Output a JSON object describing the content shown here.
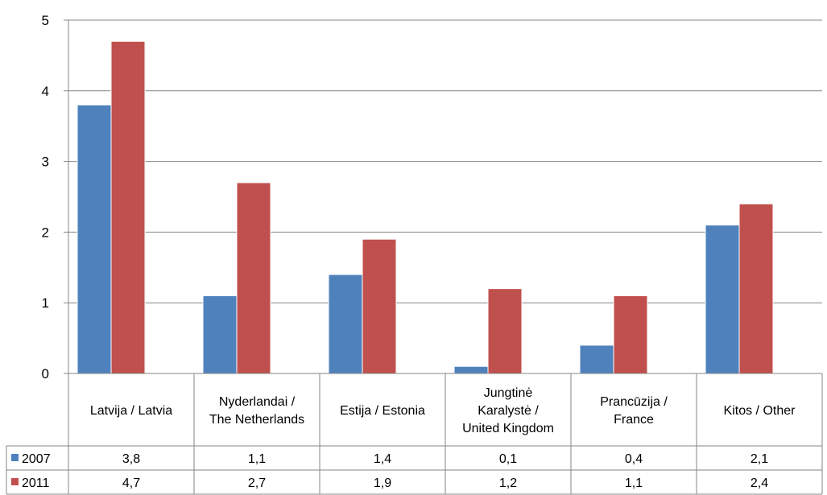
{
  "chart_data": {
    "type": "bar",
    "categories": [
      [
        "Latvija / Latvia"
      ],
      [
        "Nyderlandai /",
        "The Netherlands"
      ],
      [
        "Estija / Estonia"
      ],
      [
        "Jungtinė",
        "Karalystė /",
        "United Kingdom"
      ],
      [
        "Prancūzija /",
        "France"
      ],
      [
        "Kitos / Other"
      ]
    ],
    "series": [
      {
        "name": "2007",
        "color": "#4f81bd",
        "values": [
          3.8,
          1.1,
          1.4,
          0.1,
          0.4,
          2.1
        ],
        "labels": [
          "3,8",
          "1,1",
          "1,4",
          "0,1",
          "0,4",
          "2,1"
        ]
      },
      {
        "name": "2011",
        "color": "#c0504d",
        "values": [
          4.7,
          2.7,
          1.9,
          1.2,
          1.1,
          2.4
        ],
        "labels": [
          "4,7",
          "2,7",
          "1,9",
          "1,2",
          "1,1",
          "2,4"
        ]
      }
    ],
    "ylim": [
      0,
      5
    ],
    "yticks": [
      "0",
      "1",
      "2",
      "3",
      "4",
      "5"
    ],
    "grid": true,
    "legend": "data-table"
  }
}
